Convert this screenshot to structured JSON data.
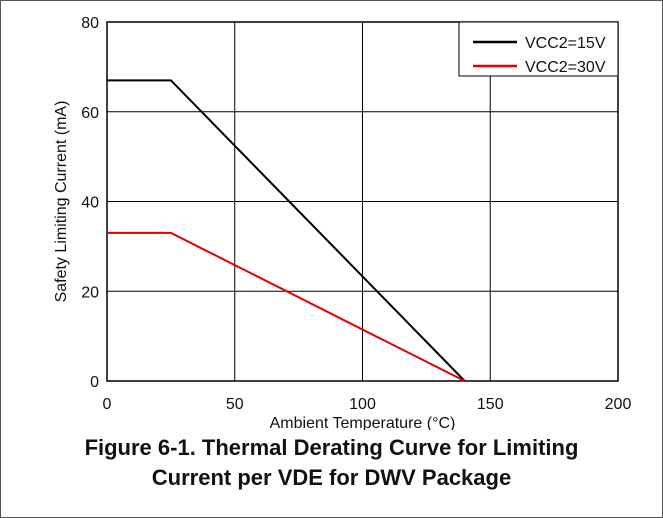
{
  "chart_data": {
    "type": "line",
    "xlabel": "Ambient Temperature (°C)",
    "ylabel": "Safety Limiting Current (mA)",
    "xlim": [
      0,
      200
    ],
    "ylim": [
      0,
      80
    ],
    "x_ticks": [
      0,
      50,
      100,
      150,
      200
    ],
    "y_ticks": [
      0,
      20,
      40,
      60,
      80
    ],
    "x_tick_labels": [
      "0",
      "50",
      "100",
      "150",
      "200"
    ],
    "y_tick_labels": [
      "0",
      "20",
      "40",
      "60",
      "80"
    ],
    "grid": true,
    "legend_position": "top-right",
    "series": [
      {
        "name": "VCC2=15V",
        "color": "#000000",
        "points": [
          [
            0,
            67
          ],
          [
            25,
            67
          ],
          [
            140,
            0
          ]
        ]
      },
      {
        "name": "VCC2=30V",
        "color": "#e00000",
        "points": [
          [
            0,
            33
          ],
          [
            25,
            33
          ],
          [
            140,
            0
          ]
        ]
      }
    ]
  },
  "caption": {
    "line1": "Figure 6-1. Thermal Derating Curve for Limiting",
    "line2": "Current per VDE for DWV Package"
  }
}
